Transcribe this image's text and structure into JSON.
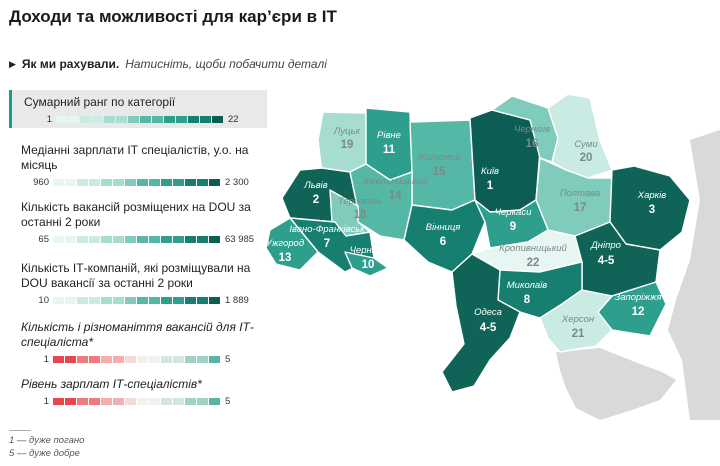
{
  "title": "Доходи та можливості для кар’єри в ІТ",
  "howto": {
    "bold": "Як ми рахували.",
    "hint": "Натисніть, щоби побачити деталі"
  },
  "categories": [
    {
      "label": "Сумарний ранг по категорії",
      "min": "1",
      "max": "22",
      "palette": [
        "#e7f6f2",
        "#c9ebe3",
        "#a7ddd1",
        "#7fccbc",
        "#55b8a6",
        "#2f9f8d",
        "#177f70",
        "#0c5e54"
      ]
    },
    {
      "label": "Медіанні зарплати ІТ спеціалістів, у.о. на місяць",
      "min": "960",
      "max": "2 300",
      "palette": [
        "#e7f6f2",
        "#c9ebe3",
        "#a7ddd1",
        "#7fccbc",
        "#55b8a6",
        "#2f9f8d",
        "#177f70",
        "#0c5e54"
      ]
    },
    {
      "label": "Кількість вакансій розміщених на DOU за останні 2 роки",
      "min": "65",
      "max": "63 985",
      "palette": [
        "#e7f6f2",
        "#c9ebe3",
        "#a7ddd1",
        "#7fccbc",
        "#55b8a6",
        "#2f9f8d",
        "#177f70",
        "#0c5e54"
      ]
    },
    {
      "label": "Кількість ІТ-компаній, які розміщували на DOU вакансії за останні 2 роки",
      "min": "10",
      "max": "1 889",
      "palette": [
        "#e7f6f2",
        "#c9ebe3",
        "#a7ddd1",
        "#7fccbc",
        "#55b8a6",
        "#2f9f8d",
        "#177f70",
        "#0c5e54"
      ]
    },
    {
      "label": "Кількість і різноманіття вакансій для ІТ-спеціаліста*",
      "min": "1",
      "max": "5",
      "palette": [
        "#e8474f",
        "#ef7b7f",
        "#f5aeb0",
        "#f8d9d9",
        "#f3f1ee",
        "#d3e6e1",
        "#9fd1c6",
        "#56b5a4"
      ]
    },
    {
      "label": "Рівень зарплат ІТ-спеціалістів*",
      "min": "1",
      "max": "5",
      "palette": [
        "#e8474f",
        "#ef7b7f",
        "#f5aeb0",
        "#f8d9d9",
        "#f3f1ee",
        "#d3e6e1",
        "#9fd1c6",
        "#56b5a4"
      ]
    }
  ],
  "notes": [
    "1 — дуже погано",
    "5 — дуже добре"
  ],
  "colors": {
    "neighbor": "#d9d9d9",
    "border": "#ffffff",
    "accent": "#1a9a8a"
  },
  "regions": [
    {
      "name": "Луцьк",
      "rank": "19",
      "color": "#a7ddd1"
    },
    {
      "name": "Рівне",
      "rank": "11",
      "color": "#2f9f8d"
    },
    {
      "name": "Житомир",
      "rank": "15",
      "color": "#55b8a6"
    },
    {
      "name": "Київ",
      "rank": "1",
      "color": "#0c5e54"
    },
    {
      "name": "Чернігів",
      "rank": "16",
      "color": "#7fccbc"
    },
    {
      "name": "Суми",
      "rank": "20",
      "color": "#c9ebe3"
    },
    {
      "name": "Львів",
      "rank": "2",
      "color": "#0f6457"
    },
    {
      "name": "Хмельницький",
      "rank": "14",
      "color": "#55b8a6"
    },
    {
      "name": "Тернопіль",
      "rank": "18",
      "color": "#7fccbc"
    },
    {
      "name": "Полтава",
      "rank": "17",
      "color": "#7fccbc"
    },
    {
      "name": "Харків",
      "rank": "3",
      "color": "#0f6457"
    },
    {
      "name": "Івано-Франківськ",
      "rank": "7",
      "color": "#177f70"
    },
    {
      "name": "Вінниця",
      "rank": "6",
      "color": "#177f70"
    },
    {
      "name": "Черкаси",
      "rank": "9",
      "color": "#2f9f8d"
    },
    {
      "name": "Ужгород",
      "rank": "13",
      "color": "#2f9f8d"
    },
    {
      "name": "Чернівці",
      "rank": "10",
      "color": "#2f9f8d"
    },
    {
      "name": "Кропивницький",
      "rank": "22",
      "color": "#e7f6f2"
    },
    {
      "name": "Дніпро",
      "rank": "4-5",
      "color": "#0f6457"
    },
    {
      "name": "Миколаїв",
      "rank": "8",
      "color": "#177f70"
    },
    {
      "name": "Запоріжжя",
      "rank": "12",
      "color": "#2f9f8d"
    },
    {
      "name": "Одеса",
      "rank": "4-5",
      "color": "#0f6457"
    },
    {
      "name": "Херсон",
      "rank": "21",
      "color": "#c9ebe3"
    }
  ]
}
